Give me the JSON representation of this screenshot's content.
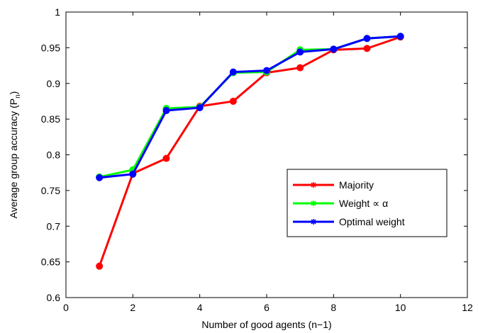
{
  "chart_data": {
    "type": "line",
    "xlabel": "Number of good agents (n−1)",
    "ylabel": "Average group accuracy (P",
    "ylabel_subscript": "n",
    "ylabel_suffix": ")",
    "xlim": [
      0,
      12
    ],
    "ylim": [
      0.6,
      1.0
    ],
    "xticks": [
      0,
      2,
      4,
      6,
      8,
      10,
      12
    ],
    "xtick_labels": [
      "0",
      "2",
      "4",
      "6",
      "8",
      "10",
      "12"
    ],
    "yticks": [
      0.6,
      0.65,
      0.7,
      0.75,
      0.8,
      0.85,
      0.9,
      0.95,
      1.0
    ],
    "ytick_labels": [
      "0.6",
      "0.65",
      "0.7",
      "0.75",
      "0.8",
      "0.85",
      "0.9",
      "0.95",
      "1"
    ],
    "grid": false,
    "legend_position": "right",
    "x": [
      1,
      2,
      3,
      4,
      5,
      6,
      7,
      8,
      9,
      10
    ],
    "series": [
      {
        "name": "Majority",
        "color": "#ff0000",
        "values": [
          0.644,
          0.774,
          0.795,
          0.868,
          0.875,
          0.915,
          0.922,
          0.947,
          0.949,
          0.965
        ]
      },
      {
        "name": "Weight ∝ α",
        "color": "#00ff00",
        "values": [
          0.769,
          0.779,
          0.865,
          0.867,
          0.915,
          0.916,
          0.947,
          0.948,
          0.963,
          0.966
        ]
      },
      {
        "name": "Optimal weight",
        "color": "#0000ff",
        "values": [
          0.768,
          0.773,
          0.862,
          0.866,
          0.916,
          0.918,
          0.944,
          0.948,
          0.963,
          0.966
        ]
      }
    ]
  }
}
